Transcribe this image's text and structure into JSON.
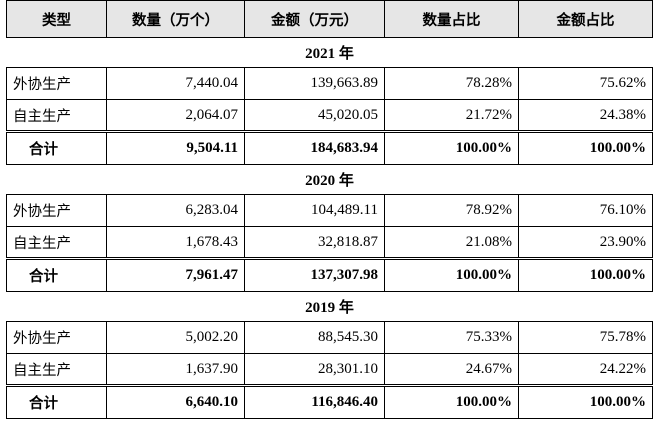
{
  "table": {
    "headers": [
      "类型",
      "数量（万个）",
      "金额（万元）",
      "数量占比",
      "金额占比"
    ],
    "sections": [
      {
        "year": "2021 年",
        "rows": [
          [
            "外协生产",
            "7,440.04",
            "139,663.89",
            "78.28%",
            "75.62%"
          ],
          [
            "自主生产",
            "2,064.07",
            "45,020.05",
            "21.72%",
            "24.38%"
          ]
        ],
        "total": [
          "合计",
          "9,504.11",
          "184,683.94",
          "100.00%",
          "100.00%"
        ]
      },
      {
        "year": "2020 年",
        "rows": [
          [
            "外协生产",
            "6,283.04",
            "104,489.11",
            "78.92%",
            "76.10%"
          ],
          [
            "自主生产",
            "1,678.43",
            "32,818.87",
            "21.08%",
            "23.90%"
          ]
        ],
        "total": [
          "合计",
          "7,961.47",
          "137,307.98",
          "100.00%",
          "100.00%"
        ]
      },
      {
        "year": "2019 年",
        "rows": [
          [
            "外协生产",
            "5,002.20",
            "88,545.30",
            "75.33%",
            "75.78%"
          ],
          [
            "自主生产",
            "1,637.90",
            "28,301.10",
            "24.67%",
            "24.22%"
          ]
        ],
        "total": [
          "合计",
          "6,640.10",
          "116,846.40",
          "100.00%",
          "100.00%"
        ]
      }
    ]
  }
}
